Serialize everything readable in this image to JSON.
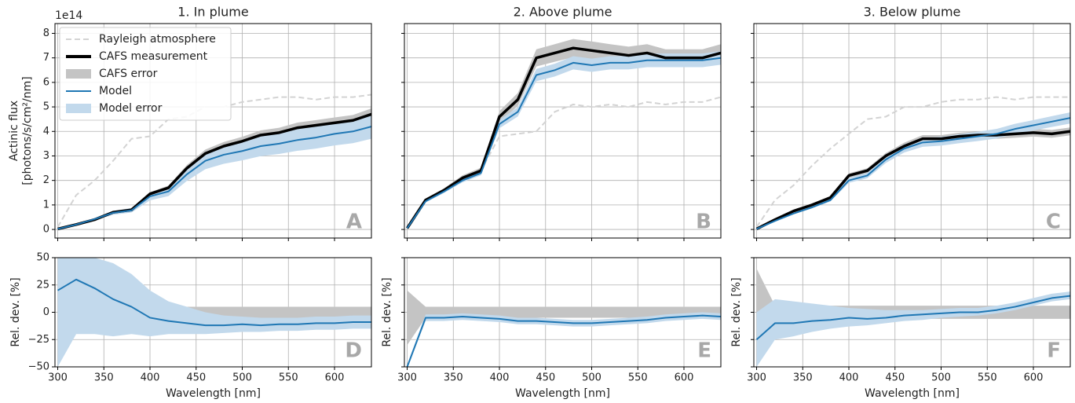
{
  "chart_data": [
    {
      "type": "line",
      "title": "1. In plume",
      "offset_text": "1e14",
      "ylabel": [
        "Actinic flux",
        "[photons/s/cm²/nm]"
      ],
      "annotation": "A",
      "legend": "upper left",
      "grid": true,
      "xtick_labels": false,
      "ytick_labels": true,
      "xlim": [
        297,
        640
      ],
      "xticks": [
        300,
        350,
        400,
        450,
        500,
        550,
        600
      ],
      "ylim": [
        -0.35,
        8.4
      ],
      "yticks": [
        0,
        1,
        2,
        3,
        4,
        5,
        6,
        7,
        8
      ],
      "x": [
        300,
        320,
        340,
        360,
        380,
        400,
        420,
        440,
        460,
        480,
        500,
        520,
        540,
        560,
        580,
        600,
        620,
        640
      ],
      "series": [
        {
          "name": "Rayleigh atmosphere",
          "kind": "line",
          "dash": true,
          "color": "#d3d3d3",
          "values": [
            0.1,
            1.4,
            2.0,
            2.8,
            3.7,
            3.8,
            4.5,
            4.6,
            5.0,
            5.0,
            5.2,
            5.3,
            5.4,
            5.4,
            5.3,
            5.4,
            5.4,
            5.5
          ]
        },
        {
          "name": "CAFS measurement",
          "kind": "line",
          "color": "#000000",
          "values": [
            0.02,
            0.2,
            0.4,
            0.7,
            0.8,
            1.45,
            1.7,
            2.5,
            3.1,
            3.4,
            3.6,
            3.85,
            3.95,
            4.15,
            4.25,
            4.35,
            4.45,
            4.7
          ]
        },
        {
          "name": "CAFS error",
          "kind": "band",
          "color": "#c4c4c4",
          "lower": [
            0.02,
            0.19,
            0.38,
            0.67,
            0.76,
            1.38,
            1.62,
            2.38,
            2.95,
            3.23,
            3.42,
            3.66,
            3.75,
            3.94,
            4.04,
            4.13,
            4.23,
            4.47
          ],
          "upper": [
            0.02,
            0.21,
            0.42,
            0.74,
            0.84,
            1.52,
            1.79,
            2.63,
            3.26,
            3.57,
            3.78,
            4.04,
            4.15,
            4.36,
            4.46,
            4.57,
            4.67,
            4.94
          ]
        },
        {
          "name": "Model",
          "kind": "line",
          "color": "#1f77b4",
          "values": [
            0.02,
            0.2,
            0.42,
            0.68,
            0.78,
            1.35,
            1.55,
            2.25,
            2.8,
            3.05,
            3.2,
            3.4,
            3.5,
            3.65,
            3.75,
            3.9,
            4.0,
            4.2
          ]
        },
        {
          "name": "Model error",
          "kind": "band",
          "color": "#c2d9ec",
          "lower": [
            0.02,
            0.18,
            0.37,
            0.6,
            0.69,
            1.19,
            1.36,
            1.98,
            2.46,
            2.68,
            2.82,
            2.99,
            3.08,
            3.21,
            3.3,
            3.43,
            3.52,
            3.7
          ],
          "upper": [
            0.02,
            0.22,
            0.47,
            0.76,
            0.87,
            1.51,
            1.74,
            2.52,
            3.14,
            3.42,
            3.58,
            3.81,
            3.92,
            4.09,
            4.2,
            4.37,
            4.48,
            4.7
          ]
        }
      ]
    },
    {
      "type": "line",
      "title": "2. Above plume",
      "annotation": "B",
      "grid": true,
      "xtick_labels": false,
      "ytick_labels": false,
      "xlim": [
        297,
        640
      ],
      "xticks": [
        300,
        350,
        400,
        450,
        500,
        550,
        600
      ],
      "ylim": [
        -0.35,
        8.4
      ],
      "yticks": [
        0,
        1,
        2,
        3,
        4,
        5,
        6,
        7,
        8
      ],
      "x": [
        300,
        320,
        340,
        360,
        380,
        400,
        420,
        440,
        460,
        480,
        500,
        520,
        540,
        560,
        580,
        600,
        620,
        640
      ],
      "series": [
        {
          "kind": "line",
          "dash": true,
          "color": "#d3d3d3",
          "values": [
            0.05,
            1.2,
            1.6,
            2.1,
            2.4,
            3.8,
            3.9,
            4.0,
            4.8,
            5.1,
            5.0,
            5.1,
            5.0,
            5.2,
            5.1,
            5.2,
            5.2,
            5.4
          ]
        },
        {
          "kind": "line",
          "color": "#000000",
          "values": [
            0.05,
            1.2,
            1.6,
            2.1,
            2.4,
            4.6,
            5.3,
            7.0,
            7.2,
            7.4,
            7.3,
            7.2,
            7.1,
            7.2,
            7.0,
            7.0,
            7.0,
            7.2
          ]
        },
        {
          "kind": "band",
          "color": "#c4c4c4",
          "lower": [
            0.05,
            1.14,
            1.52,
            2.0,
            2.28,
            4.37,
            5.04,
            6.65,
            6.84,
            7.03,
            6.94,
            6.84,
            6.75,
            6.84,
            6.65,
            6.65,
            6.65,
            6.84
          ],
          "upper": [
            0.05,
            1.26,
            1.68,
            2.21,
            2.52,
            4.83,
            5.57,
            7.35,
            7.56,
            7.77,
            7.67,
            7.56,
            7.46,
            7.56,
            7.35,
            7.35,
            7.35,
            7.56
          ]
        },
        {
          "kind": "line",
          "color": "#1f77b4",
          "values": [
            0.05,
            1.15,
            1.55,
            2.0,
            2.3,
            4.3,
            4.8,
            6.3,
            6.5,
            6.8,
            6.7,
            6.8,
            6.8,
            6.9,
            6.9,
            6.9,
            6.9,
            7.0
          ]
        },
        {
          "kind": "band",
          "color": "#c2d9ec",
          "lower": [
            0.05,
            1.1,
            1.49,
            1.92,
            2.21,
            4.13,
            4.61,
            6.05,
            6.24,
            6.53,
            6.43,
            6.53,
            6.53,
            6.62,
            6.62,
            6.62,
            6.62,
            6.72
          ],
          "upper": [
            0.05,
            1.2,
            1.61,
            2.08,
            2.39,
            4.47,
            4.99,
            6.55,
            6.76,
            7.07,
            6.97,
            7.07,
            7.07,
            7.18,
            7.18,
            7.18,
            7.18,
            7.28
          ]
        }
      ]
    },
    {
      "type": "line",
      "title": "3. Below plume",
      "annotation": "C",
      "grid": true,
      "xtick_labels": false,
      "ytick_labels": false,
      "xlim": [
        297,
        640
      ],
      "xticks": [
        300,
        350,
        400,
        450,
        500,
        550,
        600
      ],
      "ylim": [
        -0.35,
        8.4
      ],
      "yticks": [
        0,
        1,
        2,
        3,
        4,
        5,
        6,
        7,
        8
      ],
      "x": [
        300,
        320,
        340,
        360,
        380,
        400,
        420,
        440,
        460,
        480,
        500,
        520,
        540,
        560,
        580,
        600,
        620,
        640
      ],
      "series": [
        {
          "kind": "line",
          "dash": true,
          "color": "#d3d3d3",
          "values": [
            0.1,
            1.2,
            1.8,
            2.6,
            3.3,
            3.9,
            4.5,
            4.6,
            5.0,
            5.0,
            5.2,
            5.3,
            5.3,
            5.4,
            5.3,
            5.4,
            5.4,
            5.4
          ]
        },
        {
          "kind": "line",
          "color": "#000000",
          "values": [
            0.02,
            0.4,
            0.75,
            1.0,
            1.3,
            2.2,
            2.4,
            3.0,
            3.4,
            3.7,
            3.7,
            3.8,
            3.85,
            3.85,
            3.9,
            3.95,
            3.9,
            4.0
          ]
        },
        {
          "kind": "band",
          "color": "#c4c4c4",
          "lower": [
            0.02,
            0.38,
            0.72,
            0.96,
            1.25,
            2.11,
            2.3,
            2.88,
            3.26,
            3.55,
            3.55,
            3.65,
            3.7,
            3.7,
            3.74,
            3.79,
            3.74,
            3.84
          ],
          "upper": [
            0.02,
            0.42,
            0.78,
            1.04,
            1.35,
            2.29,
            2.5,
            3.12,
            3.54,
            3.85,
            3.85,
            3.95,
            4.0,
            4.0,
            4.06,
            4.11,
            4.06,
            4.16
          ]
        },
        {
          "kind": "line",
          "color": "#1f77b4",
          "values": [
            0.02,
            0.35,
            0.65,
            0.9,
            1.2,
            2.0,
            2.2,
            2.85,
            3.3,
            3.55,
            3.6,
            3.7,
            3.8,
            3.9,
            4.1,
            4.25,
            4.4,
            4.55
          ]
        },
        {
          "kind": "band",
          "color": "#c2d9ec",
          "lower": [
            0.02,
            0.33,
            0.62,
            0.86,
            1.14,
            1.9,
            2.09,
            2.71,
            3.14,
            3.37,
            3.42,
            3.52,
            3.61,
            3.71,
            3.9,
            4.04,
            4.18,
            4.32
          ],
          "upper": [
            0.02,
            0.37,
            0.68,
            0.95,
            1.26,
            2.1,
            2.31,
            2.99,
            3.47,
            3.73,
            3.78,
            3.89,
            3.99,
            4.1,
            4.31,
            4.46,
            4.62,
            4.78
          ]
        }
      ]
    },
    {
      "type": "line",
      "xlabel": "Wavelength [nm]",
      "ylabel": [
        "Rel. dev. [%]"
      ],
      "annotation": "D",
      "grid": true,
      "xtick_labels": true,
      "ytick_labels": true,
      "xlim": [
        297,
        640
      ],
      "xticks": [
        300,
        350,
        400,
        450,
        500,
        550,
        600
      ],
      "ylim": [
        -50,
        50
      ],
      "yticks": [
        {
          "value": -50,
          "label": "−50"
        },
        {
          "value": -25,
          "label": "−25"
        },
        0,
        25,
        50
      ],
      "x": [
        300,
        320,
        340,
        360,
        380,
        400,
        420,
        440,
        460,
        480,
        500,
        520,
        540,
        560,
        580,
        600,
        620,
        640
      ],
      "series": [
        {
          "kind": "band",
          "color": "#c4c4c4",
          "lower": [
            -10,
            -8,
            -6,
            -6,
            -6,
            -6,
            -5,
            -5,
            -5,
            -5,
            -5,
            -5,
            -5,
            -5,
            -5,
            -5,
            -5,
            -5
          ],
          "upper": [
            10,
            8,
            6,
            6,
            6,
            6,
            5,
            5,
            5,
            5,
            5,
            5,
            5,
            5,
            5,
            5,
            5,
            5
          ]
        },
        {
          "kind": "line",
          "color": "#1f77b4",
          "values": [
            20,
            30,
            22,
            12,
            5,
            -5,
            -8,
            -10,
            -12,
            -12,
            -11,
            -12,
            -11,
            -11,
            -10,
            -10,
            -9,
            -9
          ]
        },
        {
          "kind": "band",
          "color": "#c2d9ec",
          "lower": [
            -50,
            -20,
            -20,
            -22,
            -20,
            -22,
            -20,
            -20,
            -20,
            -19,
            -18,
            -18,
            -17,
            -17,
            -16,
            -16,
            -15,
            -15
          ],
          "upper": [
            50,
            50,
            50,
            45,
            35,
            20,
            10,
            5,
            0,
            -3,
            -4,
            -5,
            -5,
            -5,
            -4,
            -4,
            -3,
            -3
          ]
        }
      ]
    },
    {
      "type": "line",
      "xlabel": "Wavelength [nm]",
      "ylabel": [
        "Rel. dev. [%]"
      ],
      "annotation": "E",
      "grid": true,
      "xtick_labels": true,
      "ytick_labels": false,
      "xlim": [
        297,
        640
      ],
      "xticks": [
        300,
        350,
        400,
        450,
        500,
        550,
        600
      ],
      "ylim": [
        -50,
        50
      ],
      "yticks": [
        -50,
        -25,
        0,
        25,
        50
      ],
      "x": [
        300,
        320,
        340,
        360,
        380,
        400,
        420,
        440,
        460,
        480,
        500,
        520,
        540,
        560,
        580,
        600,
        620,
        640
      ],
      "series": [
        {
          "kind": "band",
          "color": "#c4c4c4",
          "lower": [
            -30,
            -5,
            -5,
            -5,
            -5,
            -5,
            -5,
            -5,
            -5,
            -5,
            -5,
            -5,
            -5,
            -5,
            -5,
            -5,
            -5,
            -5
          ],
          "upper": [
            20,
            5,
            5,
            5,
            5,
            5,
            5,
            5,
            5,
            5,
            5,
            5,
            5,
            5,
            5,
            5,
            5,
            5
          ]
        },
        {
          "kind": "line",
          "color": "#1f77b4",
          "values": [
            -50,
            -5,
            -5,
            -4,
            -5,
            -6,
            -8,
            -8,
            -9,
            -10,
            -10,
            -9,
            -8,
            -7,
            -5,
            -4,
            -3,
            -4
          ]
        },
        {
          "kind": "band",
          "color": "#c2d9ec",
          "lower": [
            -52,
            -8,
            -8,
            -7,
            -8,
            -9,
            -11,
            -11,
            -12,
            -13,
            -13,
            -12,
            -11,
            -10,
            -8,
            -7,
            -6,
            -7
          ],
          "upper": [
            -48,
            -2,
            -2,
            -1,
            -2,
            -3,
            -5,
            -5,
            -6,
            -7,
            -7,
            -6,
            -5,
            -4,
            -2,
            -1,
            0,
            -1
          ]
        }
      ]
    },
    {
      "type": "line",
      "xlabel": "Wavelength [nm]",
      "ylabel": [
        "Rel. dev. [%]"
      ],
      "annotation": "F",
      "grid": true,
      "xtick_labels": true,
      "ytick_labels": false,
      "xlim": [
        297,
        640
      ],
      "xticks": [
        300,
        350,
        400,
        450,
        500,
        550,
        600
      ],
      "ylim": [
        -50,
        50
      ],
      "yticks": [
        -50,
        -25,
        0,
        25,
        50
      ],
      "x": [
        300,
        320,
        340,
        360,
        380,
        400,
        420,
        440,
        460,
        480,
        500,
        520,
        540,
        560,
        580,
        600,
        620,
        640
      ],
      "series": [
        {
          "kind": "band",
          "color": "#c4c4c4",
          "lower": [
            -30,
            -6,
            -6,
            -6,
            -6,
            -6,
            -6,
            -6,
            -6,
            -6,
            -6,
            -6,
            -6,
            -6,
            -6,
            -6,
            -6,
            -6
          ],
          "upper": [
            40,
            6,
            6,
            6,
            6,
            6,
            6,
            6,
            6,
            6,
            6,
            6,
            6,
            6,
            6,
            6,
            6,
            6
          ]
        },
        {
          "kind": "line",
          "color": "#1f77b4",
          "values": [
            -25,
            -10,
            -10,
            -8,
            -7,
            -5,
            -6,
            -5,
            -3,
            -2,
            -1,
            0,
            0,
            2,
            5,
            9,
            13,
            15
          ]
        },
        {
          "kind": "band",
          "color": "#c2d9ec",
          "lower": [
            -50,
            -25,
            -22,
            -18,
            -15,
            -13,
            -12,
            -10,
            -8,
            -7,
            -5,
            -4,
            -3,
            -1,
            2,
            6,
            10,
            12
          ],
          "upper": [
            0,
            12,
            10,
            8,
            6,
            4,
            3,
            2,
            2,
            2,
            3,
            4,
            4,
            6,
            9,
            13,
            17,
            19
          ]
        }
      ]
    }
  ]
}
